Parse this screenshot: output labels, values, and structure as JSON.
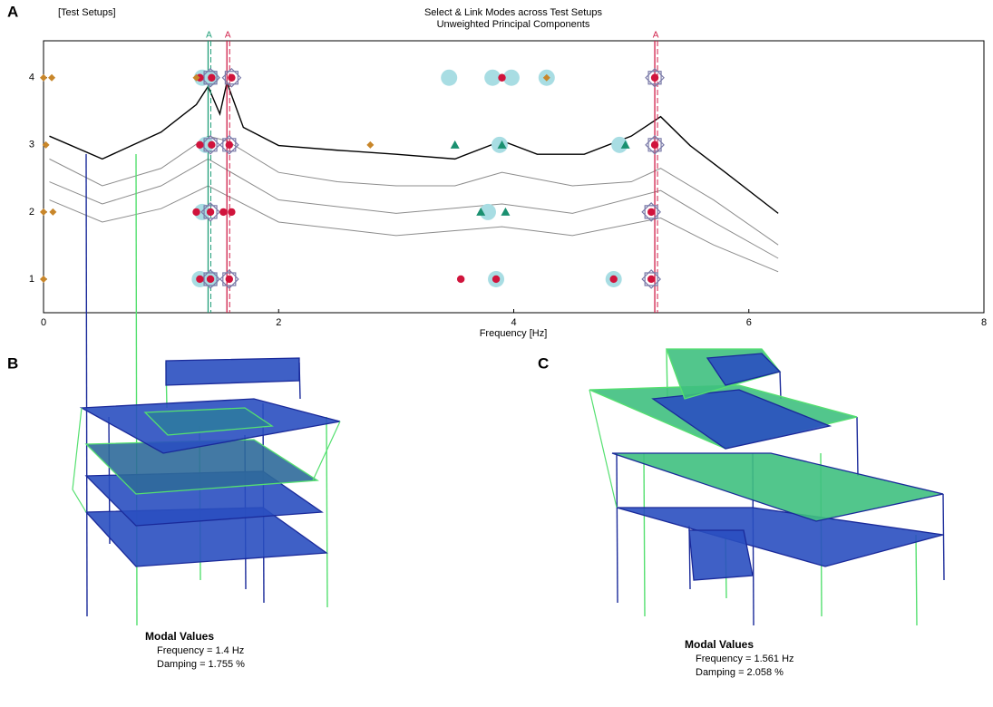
{
  "chart_data": {
    "type": "scatter",
    "panel": "A",
    "title": "Select & Link Modes across Test Setups",
    "subtitle": "Unweighted Principal Components",
    "y_label": "[Test Setups]",
    "x_label": "Frequency [Hz]",
    "xlim": [
      0,
      8
    ],
    "xticks": [
      0,
      2,
      4,
      6,
      8
    ],
    "ylim": [
      0.5,
      4.55
    ],
    "yticks": [
      1,
      2,
      3,
      4
    ],
    "lines": [
      {
        "color": "#000000",
        "x": [
          0.05,
          0.5,
          1.0,
          1.3,
          1.4,
          1.5,
          1.56,
          1.7,
          2.0,
          2.5,
          3.0,
          3.5,
          3.9,
          4.2,
          4.6,
          5.0,
          5.25,
          5.5,
          5.8,
          6.25
        ],
        "values": [
          3.13,
          2.79,
          3.19,
          3.6,
          3.87,
          3.46,
          3.93,
          3.26,
          2.99,
          2.92,
          2.86,
          2.79,
          3.06,
          2.86,
          2.86,
          3.13,
          3.42,
          2.99,
          2.59,
          1.98
        ]
      },
      {
        "color": "#8c8c8c",
        "x": [
          0.05,
          0.5,
          1.0,
          1.4,
          1.56,
          2.0,
          2.5,
          3.0,
          3.5,
          3.9,
          4.5,
          5.0,
          5.25,
          5.7,
          6.25
        ],
        "values": [
          2.79,
          2.39,
          2.65,
          3.13,
          3.06,
          2.59,
          2.45,
          2.39,
          2.39,
          2.59,
          2.39,
          2.45,
          2.65,
          2.18,
          1.51
        ]
      },
      {
        "color": "#8c8c8c",
        "x": [
          0.05,
          0.5,
          1.0,
          1.4,
          2.0,
          3.0,
          3.9,
          4.5,
          5.25,
          5.7,
          6.25
        ],
        "values": [
          2.45,
          2.12,
          2.39,
          2.79,
          2.18,
          1.98,
          2.12,
          1.98,
          2.32,
          1.85,
          1.31
        ]
      },
      {
        "color": "#8c8c8c",
        "x": [
          0.05,
          0.5,
          1.0,
          1.4,
          2.0,
          3.0,
          3.9,
          4.5,
          5.25,
          5.7,
          6.25
        ],
        "values": [
          2.18,
          1.85,
          2.05,
          2.39,
          1.85,
          1.65,
          1.78,
          1.65,
          1.91,
          1.51,
          1.11
        ]
      }
    ],
    "annotations": [
      {
        "x": 1.4,
        "label": "A",
        "color": "#1f9e78"
      },
      {
        "x": 1.56,
        "label": "A",
        "color": "#d0204a"
      },
      {
        "x": 5.2,
        "label": "A",
        "color": "#d0204a"
      }
    ],
    "series": [
      {
        "marker": "circle-large",
        "color": "#a8dde3",
        "x": [
          1.35,
          1.42,
          3.45,
          3.82,
          3.98,
          4.28,
          1.38,
          3.88,
          4.9,
          1.35,
          3.78,
          1.33,
          1.42,
          3.85,
          4.85
        ],
        "values": [
          4,
          4,
          4,
          4,
          4,
          4,
          3,
          3,
          3,
          2,
          2,
          1,
          1,
          1,
          1
        ]
      },
      {
        "marker": "diamond-box",
        "color": "#7a7aa8",
        "x": [
          1.42,
          1.6,
          5.2,
          1.42,
          1.58,
          5.2,
          1.42,
          5.17,
          1.42,
          1.58,
          5.17
        ],
        "values": [
          4,
          4,
          4,
          3,
          3,
          3,
          2,
          2,
          1,
          1,
          1
        ]
      },
      {
        "marker": "dot",
        "color": "#d0143c",
        "x": [
          1.33,
          1.43,
          1.6,
          3.9,
          5.2,
          1.33,
          1.43,
          1.58,
          5.2,
          1.3,
          1.42,
          1.53,
          1.6,
          5.17,
          1.33,
          1.42,
          1.58,
          3.55,
          3.85,
          4.85,
          5.17
        ],
        "values": [
          4,
          4,
          4,
          4,
          4,
          3,
          3,
          3,
          3,
          2,
          2,
          2,
          2,
          2,
          1,
          1,
          1,
          1,
          1,
          1,
          1
        ]
      },
      {
        "marker": "triangle",
        "color": "#1a9070",
        "x": [
          3.5,
          3.9,
          4.95,
          3.72,
          3.93
        ],
        "values": [
          3,
          3,
          3,
          2,
          2
        ]
      },
      {
        "marker": "diamond",
        "color": "#c8862a",
        "x": [
          0,
          0.07,
          1.3,
          4.28,
          0.02,
          2.78,
          0,
          0.08,
          0
        ],
        "values": [
          4,
          4,
          4,
          4,
          3,
          3,
          2,
          2,
          1
        ]
      }
    ]
  },
  "panels": [
    {
      "letter": "B",
      "heading": "Modal Values",
      "frequency": "Frequency = 1.4 Hz",
      "damping": "Damping = 1.755 %"
    },
    {
      "letter": "C",
      "heading": "Modal Values",
      "frequency": "Frequency = 1.561 Hz",
      "damping": "Damping = 2.058 %"
    }
  ]
}
